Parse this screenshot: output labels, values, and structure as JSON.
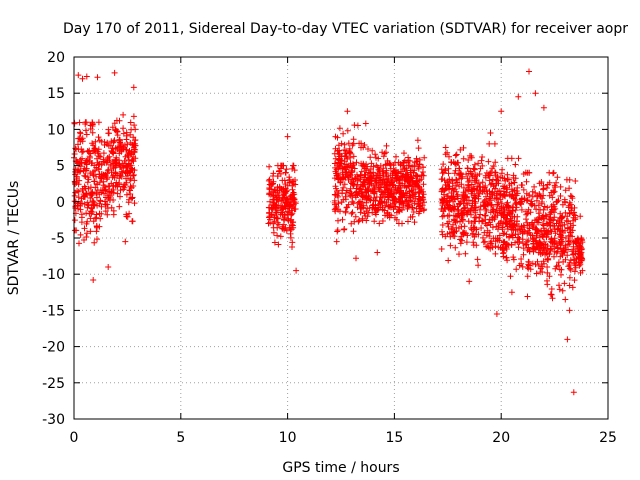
{
  "chart_data": {
    "type": "scatter",
    "title": "Day 170 of 2011, Sidereal Day-to-day VTEC variation (SDTVAR) for receiver aopr",
    "xlabel": "GPS time / hours",
    "ylabel": "SDTVAR / TECUs",
    "xlim": [
      0,
      25
    ],
    "ylim": [
      -30,
      20
    ],
    "xticks": [
      0,
      5,
      10,
      15,
      20,
      25
    ],
    "yticks": [
      -30,
      -25,
      -20,
      -15,
      -10,
      -5,
      0,
      5,
      10,
      15,
      20
    ],
    "grid": true,
    "marker": "+",
    "color": "#ff0000",
    "clusters": [
      {
        "x_start": 0.0,
        "x_end": 1.7,
        "y_low": -9,
        "y_high": 11,
        "y_center": 3
      },
      {
        "x_start": 1.7,
        "x_end": 2.9,
        "y_low": -5,
        "y_high": 12,
        "y_center": 5
      },
      {
        "x_start": 9.1,
        "x_end": 10.4,
        "y_low": -7,
        "y_high": 5,
        "y_center": 0
      },
      {
        "x_start": 12.2,
        "x_end": 13.7,
        "y_low": -5,
        "y_high": 11,
        "y_center": 3
      },
      {
        "x_start": 13.7,
        "x_end": 16.4,
        "y_low": -3,
        "y_high": 8,
        "y_center": 2
      },
      {
        "x_start": 17.2,
        "x_end": 19.8,
        "y_low": -9,
        "y_high": 8,
        "y_center": 0
      },
      {
        "x_start": 19.8,
        "x_end": 21.2,
        "y_low": -11,
        "y_high": 6,
        "y_center": -2
      },
      {
        "x_start": 21.2,
        "x_end": 23.5,
        "y_low": -14,
        "y_high": 4,
        "y_center": -4
      },
      {
        "x_start": 23.5,
        "x_end": 23.8,
        "y_low": -10,
        "y_high": -5,
        "y_center": -7
      }
    ],
    "notable_points": [
      {
        "x": 0.2,
        "y": 17.5
      },
      {
        "x": 0.4,
        "y": 17.0
      },
      {
        "x": 0.6,
        "y": 17.3
      },
      {
        "x": 1.1,
        "y": 17.2
      },
      {
        "x": 1.9,
        "y": 17.8
      },
      {
        "x": 2.8,
        "y": 15.8
      },
      {
        "x": 0.9,
        "y": -10.8
      },
      {
        "x": 1.6,
        "y": -9.0
      },
      {
        "x": 2.4,
        "y": -5.5
      },
      {
        "x": 10.0,
        "y": 9.0
      },
      {
        "x": 10.4,
        "y": -9.5
      },
      {
        "x": 12.3,
        "y": -5.5
      },
      {
        "x": 12.8,
        "y": 12.5
      },
      {
        "x": 13.2,
        "y": -7.8
      },
      {
        "x": 14.2,
        "y": -7.0
      },
      {
        "x": 16.1,
        "y": 8.5
      },
      {
        "x": 17.4,
        "y": 7.5
      },
      {
        "x": 18.5,
        "y": -11.0
      },
      {
        "x": 19.5,
        "y": 9.5
      },
      {
        "x": 19.8,
        "y": -15.5
      },
      {
        "x": 20.0,
        "y": 12.5
      },
      {
        "x": 20.5,
        "y": -12.5
      },
      {
        "x": 20.8,
        "y": 14.5
      },
      {
        "x": 21.3,
        "y": 18.0
      },
      {
        "x": 21.6,
        "y": 15.0
      },
      {
        "x": 22.0,
        "y": 13.0
      },
      {
        "x": 23.1,
        "y": -19.0
      },
      {
        "x": 23.4,
        "y": -26.3
      },
      {
        "x": 23.0,
        "y": -13.5
      },
      {
        "x": 23.2,
        "y": -15.0
      },
      {
        "x": 23.8,
        "y": -9.5
      },
      {
        "x": 23.7,
        "y": -2.0
      }
    ]
  }
}
